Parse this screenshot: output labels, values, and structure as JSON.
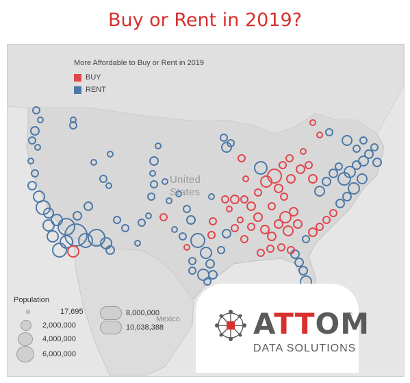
{
  "title": "Buy or Rent in 2019?",
  "legend": {
    "title": "More Affordable to Buy or Rent in 2019",
    "items": [
      {
        "label": "BUY",
        "color": "#e0474c"
      },
      {
        "label": "RENT",
        "color": "#4e79a7"
      }
    ]
  },
  "map_labels": {
    "country_line1": "United",
    "country_line2": "States",
    "mexico": "Mexico"
  },
  "population_legend": {
    "title": "Population",
    "entries": [
      "17,695",
      "2,000,000",
      "4,000,000",
      "6,000,000",
      "8,000,000",
      "10,038,388"
    ]
  },
  "logo": {
    "word_a": "A",
    "word_tt": "TT",
    "word_om": "OM",
    "registered": "®",
    "subtitle": "DATA SOLUTIONS"
  },
  "colors": {
    "buy": "#e0474c",
    "rent": "#4e79a7",
    "land": "#d9d9d9",
    "water": "#e8e8e8",
    "title": "#d7302f"
  }
}
